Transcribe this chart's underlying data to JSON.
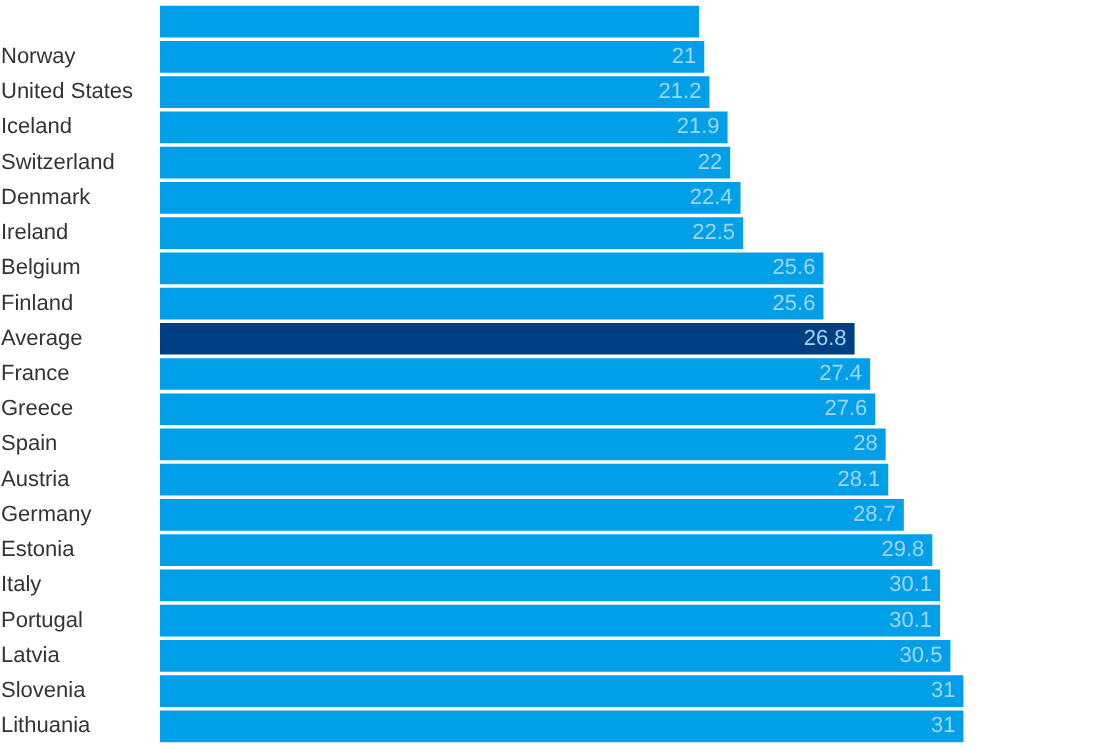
{
  "chart_data": {
    "type": "bar",
    "orientation": "horizontal",
    "categories": [
      null,
      "Norway",
      "United States",
      "Iceland",
      "Switzerland",
      "Denmark",
      "Ireland",
      "Belgium",
      "Finland",
      "Average",
      "France",
      "Greece",
      "Spain",
      "Austria",
      "Germany",
      "Estonia",
      "Italy",
      "Portugal",
      "Latvia",
      "Slovenia",
      "Lithuania"
    ],
    "values": [
      20.8,
      21,
      21.2,
      21.9,
      22,
      22.4,
      22.5,
      25.6,
      25.6,
      26.8,
      27.4,
      27.6,
      28,
      28.1,
      28.7,
      29.8,
      30.1,
      30.1,
      30.5,
      31,
      31
    ],
    "value_labels": [
      null,
      "21",
      "21.2",
      "21.9",
      "22",
      "22.4",
      "22.5",
      "25.6",
      "25.6",
      "26.8",
      "27.4",
      "27.6",
      "28",
      "28.1",
      "28.7",
      "29.8",
      "30.1",
      "30.1",
      "30.5",
      "31",
      "31"
    ],
    "colors": [
      "#009fe8",
      "#009fe8",
      "#009fe8",
      "#009fe8",
      "#009fe8",
      "#009fe8",
      "#009fe8",
      "#009fe8",
      "#009fe8",
      "#003f84",
      "#009fe8",
      "#009fe8",
      "#009fe8",
      "#009fe8",
      "#009fe8",
      "#009fe8",
      "#009fe8",
      "#009fe8",
      "#009fe8",
      "#009fe8",
      "#009fe8"
    ],
    "grid": false
  }
}
